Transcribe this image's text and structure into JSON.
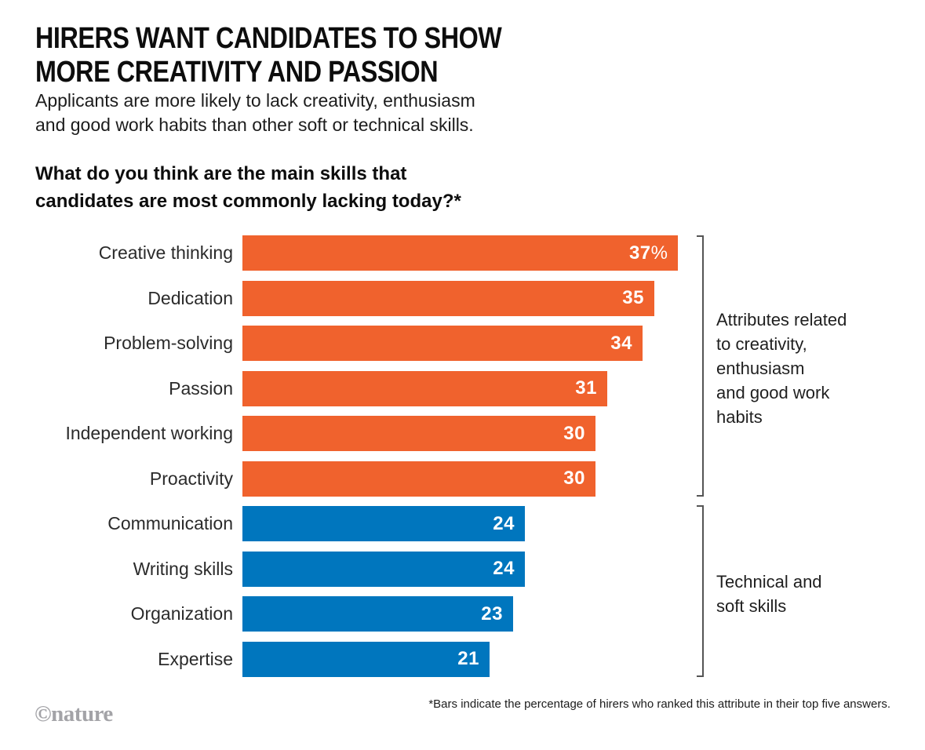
{
  "header": {
    "title_lines": [
      "HIRERS WANT CANDIDATES TO SHOW",
      "MORE CREATIVITY AND PASSION"
    ],
    "subtitle_lines": [
      "Applicants are more likely to lack creativity, enthusiasm",
      "and good work habits than other soft or technical skills."
    ],
    "question_lines": [
      "What do you think are the main skills that",
      "candidates are most commonly lacking today?*"
    ]
  },
  "chart_data": {
    "type": "bar",
    "orientation": "horizontal",
    "title": "What do you think are the main skills that candidates are most commonly lacking today?*",
    "xlabel": "",
    "ylabel": "",
    "xlim": [
      0,
      37
    ],
    "grid": false,
    "unit": "percent of hirers",
    "categories": [
      "Creative thinking",
      "Dedication",
      "Problem-solving",
      "Passion",
      "Independent working",
      "Proactivity",
      "Communication",
      "Writing skills",
      "Organization",
      "Expertise"
    ],
    "values": [
      37,
      35,
      34,
      31,
      30,
      30,
      24,
      24,
      23,
      21
    ],
    "rows": [
      {
        "label": "Creative thinking",
        "value": 37,
        "display": "37",
        "suffix": "%",
        "group": "creativity"
      },
      {
        "label": "Dedication",
        "value": 35,
        "display": "35",
        "suffix": "",
        "group": "creativity"
      },
      {
        "label": "Problem-solving",
        "value": 34,
        "display": "34",
        "suffix": "",
        "group": "creativity"
      },
      {
        "label": "Passion",
        "value": 31,
        "display": "31",
        "suffix": "",
        "group": "creativity"
      },
      {
        "label": "Independent working",
        "value": 30,
        "display": "30",
        "suffix": "",
        "group": "creativity"
      },
      {
        "label": "Proactivity",
        "value": 30,
        "display": "30",
        "suffix": "",
        "group": "creativity"
      },
      {
        "label": "Communication",
        "value": 24,
        "display": "24",
        "suffix": "",
        "group": "technical"
      },
      {
        "label": "Writing skills",
        "value": 24,
        "display": "24",
        "suffix": "",
        "group": "technical"
      },
      {
        "label": "Organization",
        "value": 23,
        "display": "23",
        "suffix": "",
        "group": "technical"
      },
      {
        "label": "Expertise",
        "value": 21,
        "display": "21",
        "suffix": "",
        "group": "technical"
      }
    ],
    "colors": {
      "creativity": "#F0622D",
      "technical": "#0076BE"
    },
    "annotations": [
      {
        "text": "Attributes related\nto creativity,\nenthusiasm\nand good work\nhabits",
        "group": "creativity"
      },
      {
        "text": "Technical and\nsoft skills",
        "group": "technical"
      }
    ]
  },
  "footer": {
    "footnote": "*Bars indicate the percentage of hirers who ranked this attribute in their top five answers.",
    "brand": "©nature"
  }
}
